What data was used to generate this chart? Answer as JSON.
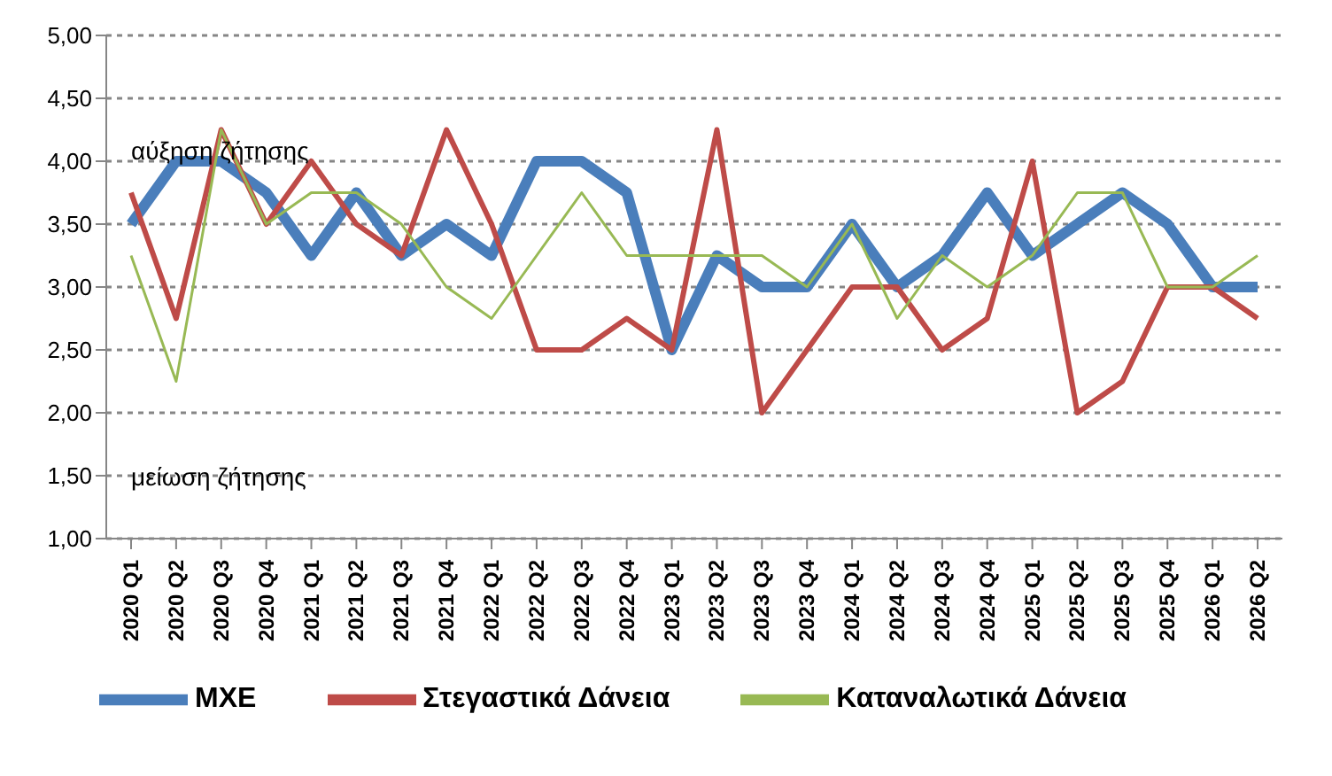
{
  "chart_data": {
    "type": "line",
    "categories": [
      "2020 Q1",
      "2020 Q2",
      "2020 Q3",
      "2020 Q4",
      "2021 Q1",
      "2021 Q2",
      "2021 Q3",
      "2021 Q4",
      "2022 Q1",
      "2022 Q2",
      "2022 Q3",
      "2022 Q4",
      "2023 Q1",
      "2023 Q2",
      "2023 Q3",
      "2023 Q4",
      "2024 Q1",
      "2024 Q2",
      "2024 Q3",
      "2024 Q4",
      "2025 Q1",
      "2025 Q2",
      "2025 Q3",
      "2025 Q4",
      "2026 Q1",
      "2026 Q2"
    ],
    "series": [
      {
        "name": "ΜΧΕ",
        "color": "#4a7ebb",
        "values": [
          3.5,
          4,
          4,
          3.75,
          3.25,
          3.75,
          3.25,
          3.5,
          3.25,
          4,
          4,
          3.75,
          2.5,
          3.25,
          3,
          3,
          3.5,
          3,
          3.25,
          3.75,
          3.25,
          3.5,
          3.75,
          3.5,
          3,
          3
        ]
      },
      {
        "name": "Στεγαστικά Δάνεια",
        "color": "#be4b48",
        "values": [
          3.75,
          2.75,
          4.25,
          3.5,
          4,
          3.5,
          3.25,
          4.25,
          3.5,
          2.5,
          2.5,
          2.75,
          2.5,
          4.25,
          2,
          2.5,
          3,
          3,
          2.5,
          2.75,
          4,
          2,
          2.25,
          3,
          3,
          2.75
        ]
      },
      {
        "name": "Καταναλωτικά Δάνεια",
        "color": "#98b954",
        "values": [
          3.25,
          2.25,
          4.25,
          3.5,
          3.75,
          3.75,
          3.5,
          3,
          2.75,
          3.25,
          3.75,
          3.25,
          3.25,
          3.25,
          3.25,
          3,
          3.5,
          2.75,
          3.25,
          3,
          3.25,
          3.75,
          3.75,
          3,
          3,
          3.25
        ]
      }
    ],
    "ylim": [
      1,
      5
    ],
    "yticks": [
      {
        "value": 1,
        "label": "1,00"
      },
      {
        "value": 1.5,
        "label": "1,50"
      },
      {
        "value": 2,
        "label": "2,00"
      },
      {
        "value": 2.5,
        "label": "2,50"
      },
      {
        "value": 3,
        "label": "3,00"
      },
      {
        "value": 3.5,
        "label": "3,50"
      },
      {
        "value": 4,
        "label": "4,00"
      },
      {
        "value": 4.5,
        "label": "4,50"
      },
      {
        "value": 5,
        "label": "5,00"
      }
    ],
    "annotations": [
      "αύξηση ζήτησης",
      "μείωση ζήτησης"
    ],
    "grid": "y",
    "legend": "bottom",
    "marker": "none",
    "line_style": "solid"
  }
}
